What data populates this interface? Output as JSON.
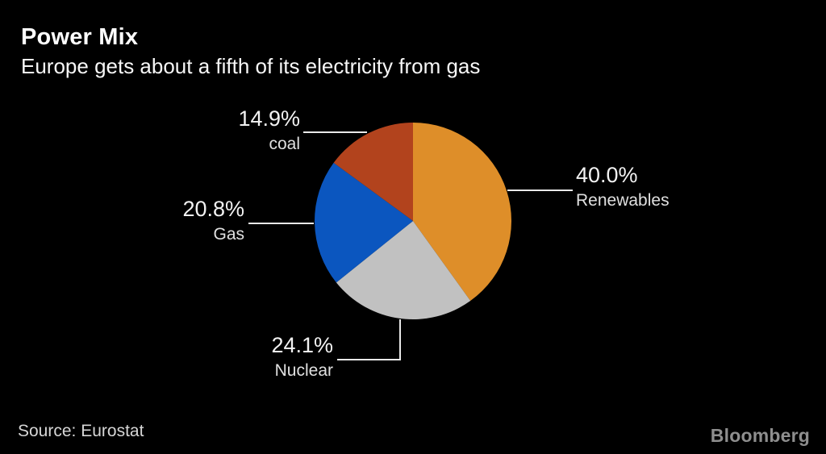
{
  "header": {
    "title": "Power Mix",
    "subtitle": "Europe gets about a fifth of its electricity from gas"
  },
  "footer": {
    "source": "Source: Eurostat",
    "brand": "Bloomberg"
  },
  "colors": {
    "background": "#000000",
    "leader_line": "#e9e9e9",
    "title_text": "#ffffff",
    "label_text": "#f2f2f2"
  },
  "chart_data": {
    "type": "pie",
    "title": "Power Mix",
    "subtitle": "Europe gets about a fifth of its electricity from gas",
    "source": "Eurostat",
    "start_angle_deg": 0,
    "direction": "clockwise",
    "legend_position": "none",
    "labels_style": "external-callouts-with-leader-lines",
    "slices": [
      {
        "label": "Renewables",
        "value_pct": 40.0,
        "display": "40.0%",
        "color": "#de8e29",
        "label_side": "right"
      },
      {
        "label": "Nuclear",
        "value_pct": 24.1,
        "display": "24.1%",
        "color": "#c1c1c1",
        "label_side": "bottom-left"
      },
      {
        "label": "Gas",
        "value_pct": 20.8,
        "display": "20.8%",
        "color": "#0b56bf",
        "label_side": "left"
      },
      {
        "label": "coal",
        "value_pct": 14.9,
        "display": "14.9%",
        "color": "#b2431d",
        "label_side": "top-left"
      }
    ]
  }
}
